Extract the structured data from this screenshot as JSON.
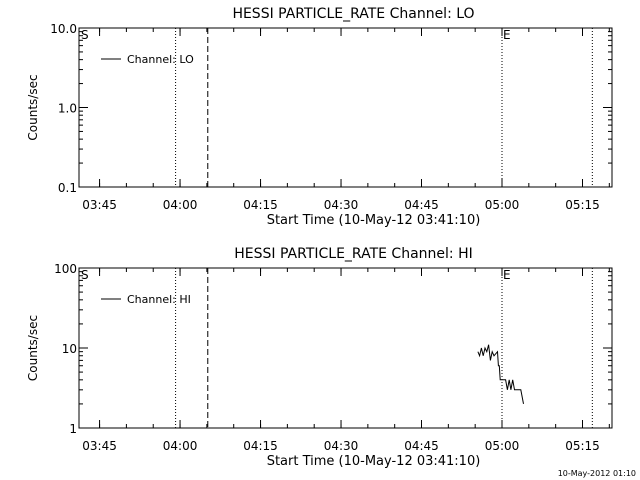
{
  "footer_timestamp": "10-May-2012 01:10",
  "chart_data": [
    {
      "type": "line",
      "title": "HESSI PARTICLE_RATE Channel: LO",
      "xlabel": "Start Time (10-May-12 03:41:10)",
      "ylabel": "Counts/sec",
      "y_scale": "log",
      "xlim": [
        "03:41:10",
        "05:20:30"
      ],
      "ylim": [
        0.1,
        10.0
      ],
      "x_ticks": [
        "03:45",
        "04:00",
        "04:15",
        "04:30",
        "04:45",
        "05:00",
        "05:15"
      ],
      "y_ticks": [
        0.1,
        1.0,
        10.0
      ],
      "y_tick_labels": [
        "0.1",
        "1.0",
        "10.0"
      ],
      "legend": {
        "placement": "top-left",
        "entries": [
          "Channel: LO"
        ]
      },
      "markers": [
        {
          "label": "S",
          "time": "03:41:10",
          "style": "none"
        },
        {
          "label": "",
          "time": "03:59:10",
          "style": "dotted"
        },
        {
          "label": "",
          "time": "04:05:10",
          "style": "dashed"
        },
        {
          "label": "E",
          "time": "05:00:00",
          "style": "dotted"
        },
        {
          "label": "",
          "time": "05:16:50",
          "style": "dotted"
        }
      ],
      "series": [
        {
          "name": "Channel: LO",
          "points": []
        }
      ]
    },
    {
      "type": "line",
      "title": "HESSI PARTICLE_RATE Channel: HI",
      "xlabel": "Start Time (10-May-12 03:41:10)",
      "ylabel": "Counts/sec",
      "y_scale": "log",
      "xlim": [
        "03:41:10",
        "05:20:30"
      ],
      "ylim": [
        1,
        100
      ],
      "x_ticks": [
        "03:45",
        "04:00",
        "04:15",
        "04:30",
        "04:45",
        "05:00",
        "05:15"
      ],
      "y_ticks": [
        1,
        10,
        100
      ],
      "y_tick_labels": [
        "1",
        "10",
        "100"
      ],
      "legend": {
        "placement": "top-left",
        "entries": [
          "Channel: HI"
        ]
      },
      "markers": [
        {
          "label": "S",
          "time": "03:41:10",
          "style": "none"
        },
        {
          "label": "",
          "time": "03:59:10",
          "style": "dotted"
        },
        {
          "label": "",
          "time": "04:05:10",
          "style": "dashed"
        },
        {
          "label": "E",
          "time": "05:00:00",
          "style": "dotted"
        },
        {
          "label": "",
          "time": "05:16:50",
          "style": "dotted"
        }
      ],
      "series": [
        {
          "name": "Channel: HI",
          "points": [
            [
              "04:55:30",
              9
            ],
            [
              "04:55:50",
              8
            ],
            [
              "04:56:10",
              10
            ],
            [
              "04:56:30",
              8
            ],
            [
              "04:56:50",
              10
            ],
            [
              "04:57:10",
              9
            ],
            [
              "04:57:30",
              11
            ],
            [
              "04:57:50",
              7
            ],
            [
              "04:58:10",
              9
            ],
            [
              "04:58:30",
              8
            ],
            [
              "04:59:10",
              9
            ],
            [
              "04:59:20",
              6
            ],
            [
              "04:59:30",
              6
            ],
            [
              "04:59:40",
              4
            ],
            [
              "05:00:10",
              4
            ],
            [
              "05:00:40",
              4
            ],
            [
              "05:01:00",
              3
            ],
            [
              "05:01:20",
              4
            ],
            [
              "05:01:40",
              3
            ],
            [
              "05:02:00",
              4
            ],
            [
              "05:02:20",
              3
            ],
            [
              "05:02:40",
              3
            ],
            [
              "05:03:00",
              3
            ],
            [
              "05:03:30",
              3
            ],
            [
              "05:04:00",
              2
            ]
          ]
        }
      ]
    }
  ]
}
